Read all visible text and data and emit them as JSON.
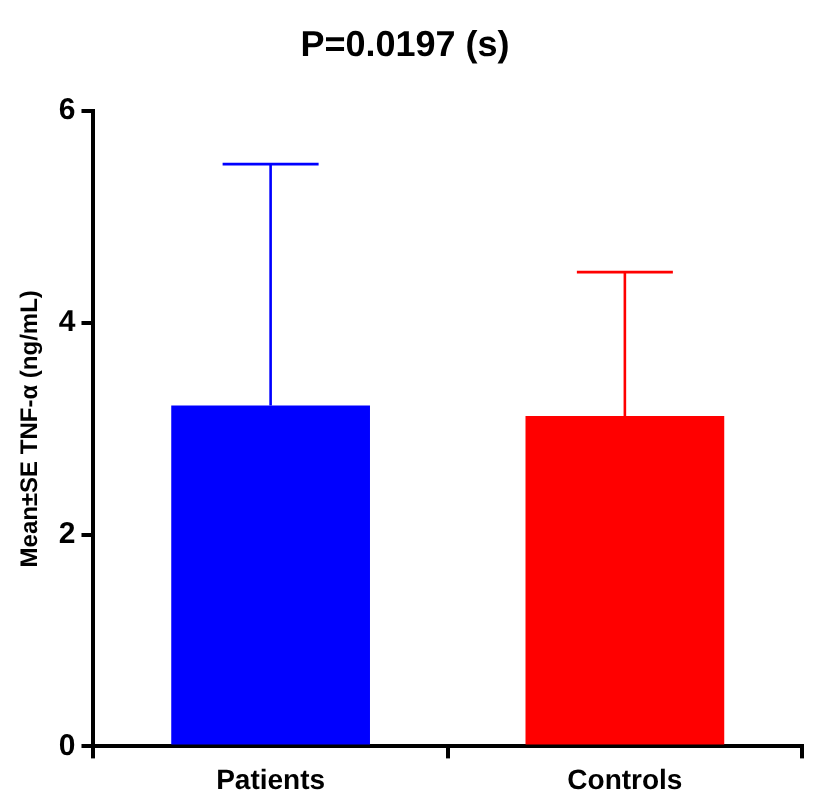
{
  "chart_data": {
    "type": "bar",
    "title": "P=0.0197 (s)",
    "ylabel": "Mean±SE TNF-α (ng/mL)",
    "categories": [
      "Patients",
      "Controls"
    ],
    "values": [
      3.22,
      3.12
    ],
    "colors": [
      "#0000ff",
      "#ff0000"
    ],
    "errors": [
      [
        3.22,
        5.5
      ],
      [
        3.12,
        4.48
      ]
    ],
    "ylim": [
      0,
      6
    ],
    "yticks": [
      0,
      2,
      4,
      6
    ],
    "grid": false,
    "legend": false
  }
}
